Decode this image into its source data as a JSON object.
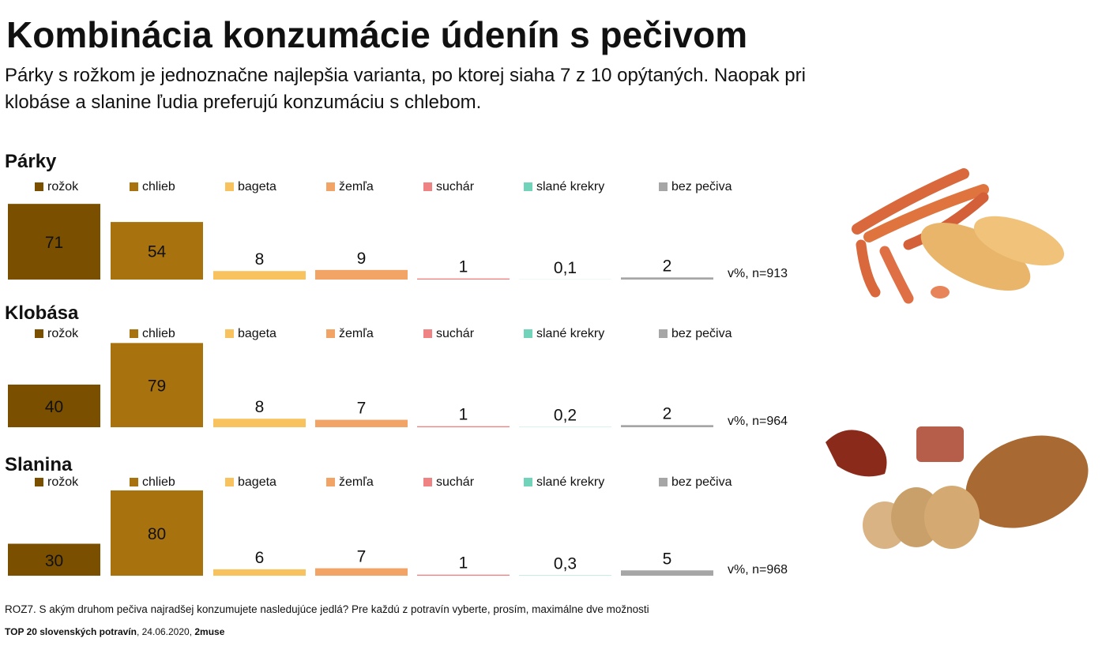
{
  "header": {
    "title": "Kombinácia konzumácie údenín s pečivom",
    "subtitle": [
      "Párky s rožkom je jednoznačne najlepšia varianta, po ktorej siaha 7 z 10 opýtaných. Naopak pri",
      "klobáse a slanine ľudia preferujú konzumáciu s chlebom."
    ]
  },
  "chart_data": [
    {
      "type": "bar",
      "title": "Párky",
      "categories": [
        "rožok",
        "chlieb",
        "bageta",
        "žemľa",
        "suchár",
        "slané krekry",
        "bez pečiva"
      ],
      "values": [
        71,
        54,
        8,
        9,
        1,
        0.1,
        2
      ],
      "value_labels": [
        "71",
        "54",
        "8",
        "9",
        "1",
        "0,1",
        "2"
      ],
      "colors": [
        "#7a5000",
        "#a8720f",
        "#f8c35e",
        "#f1a466",
        "#ef8383",
        "#71d3b9",
        "#a6a6a6"
      ],
      "note": "v%, n=913"
    },
    {
      "type": "bar",
      "title": "Klobása",
      "categories": [
        "rožok",
        "chlieb",
        "bageta",
        "žemľa",
        "suchár",
        "slané krekry",
        "bez pečiva"
      ],
      "values": [
        40,
        79,
        8,
        7,
        1,
        0.2,
        2
      ],
      "value_labels": [
        "40",
        "79",
        "8",
        "7",
        "1",
        "0,2",
        "2"
      ],
      "colors": [
        "#7a5000",
        "#a8720f",
        "#f8c35e",
        "#f1a466",
        "#ef8383",
        "#71d3b9",
        "#a6a6a6"
      ],
      "note": "v%, n=964"
    },
    {
      "type": "bar",
      "title": "Slanina",
      "categories": [
        "rožok",
        "chlieb",
        "bageta",
        "žemľa",
        "suchár",
        "slané krekry",
        "bez pečiva"
      ],
      "values": [
        30,
        80,
        6,
        7,
        1,
        0.3,
        5
      ],
      "value_labels": [
        "30",
        "80",
        "6",
        "7",
        "1",
        "0,3",
        "5"
      ],
      "colors": [
        "#7a5000",
        "#a8720f",
        "#f8c35e",
        "#f1a466",
        "#ef8383",
        "#71d3b9",
        "#a6a6a6"
      ],
      "note": "v%, n=968"
    }
  ],
  "footer": {
    "question": "ROZ7. S akým druhom pečiva najradšej konzumujete nasledujúce jedlá? Pre každú z potravín vyberte, prosím, maximálne dve možnosti",
    "source": [
      "TOP 20 slovenských potravín",
      ", 24.06.2020, ",
      "2muse"
    ]
  }
}
